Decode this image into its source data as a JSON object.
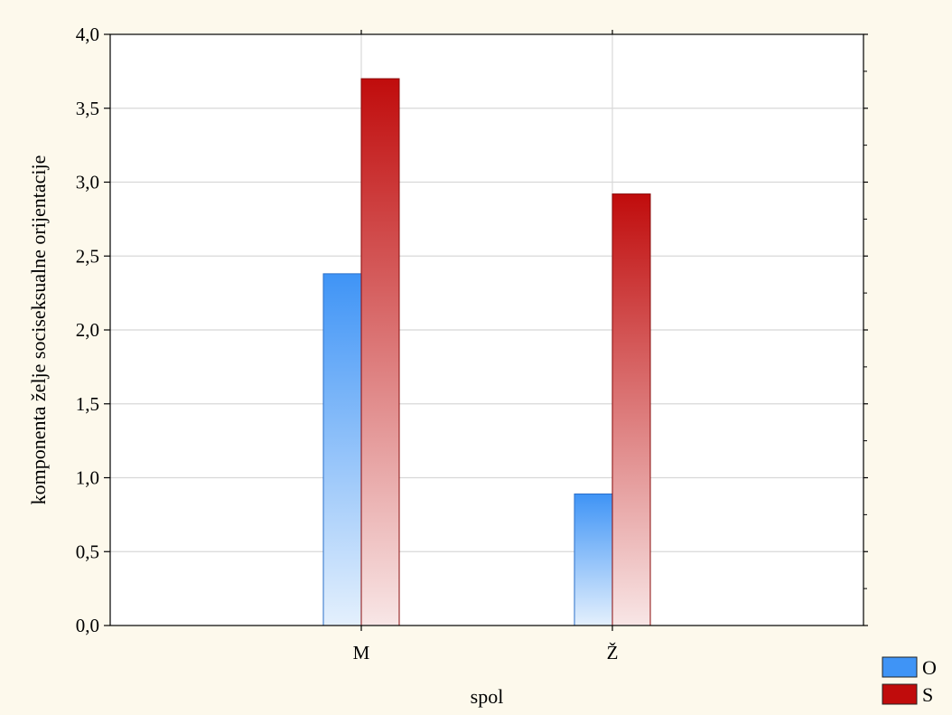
{
  "chart_data": {
    "type": "bar",
    "title": "",
    "xlabel": "spol",
    "ylabel": "komponenta želje sociseksualne orijentacije",
    "categories": [
      "M",
      "Ž"
    ],
    "series": [
      {
        "name": "O",
        "values": [
          2.38,
          0.89
        ],
        "color": "#3f94f6"
      },
      {
        "name": "S",
        "values": [
          3.7,
          2.92
        ],
        "color": "#c00c0c"
      }
    ],
    "ylim": [
      0,
      4
    ],
    "yticks": [
      "0,0",
      "0,5",
      "1,0",
      "1,5",
      "2,0",
      "2,5",
      "3,0",
      "3,5",
      "4,0"
    ],
    "grid": true,
    "legend_position": "bottom-right"
  }
}
